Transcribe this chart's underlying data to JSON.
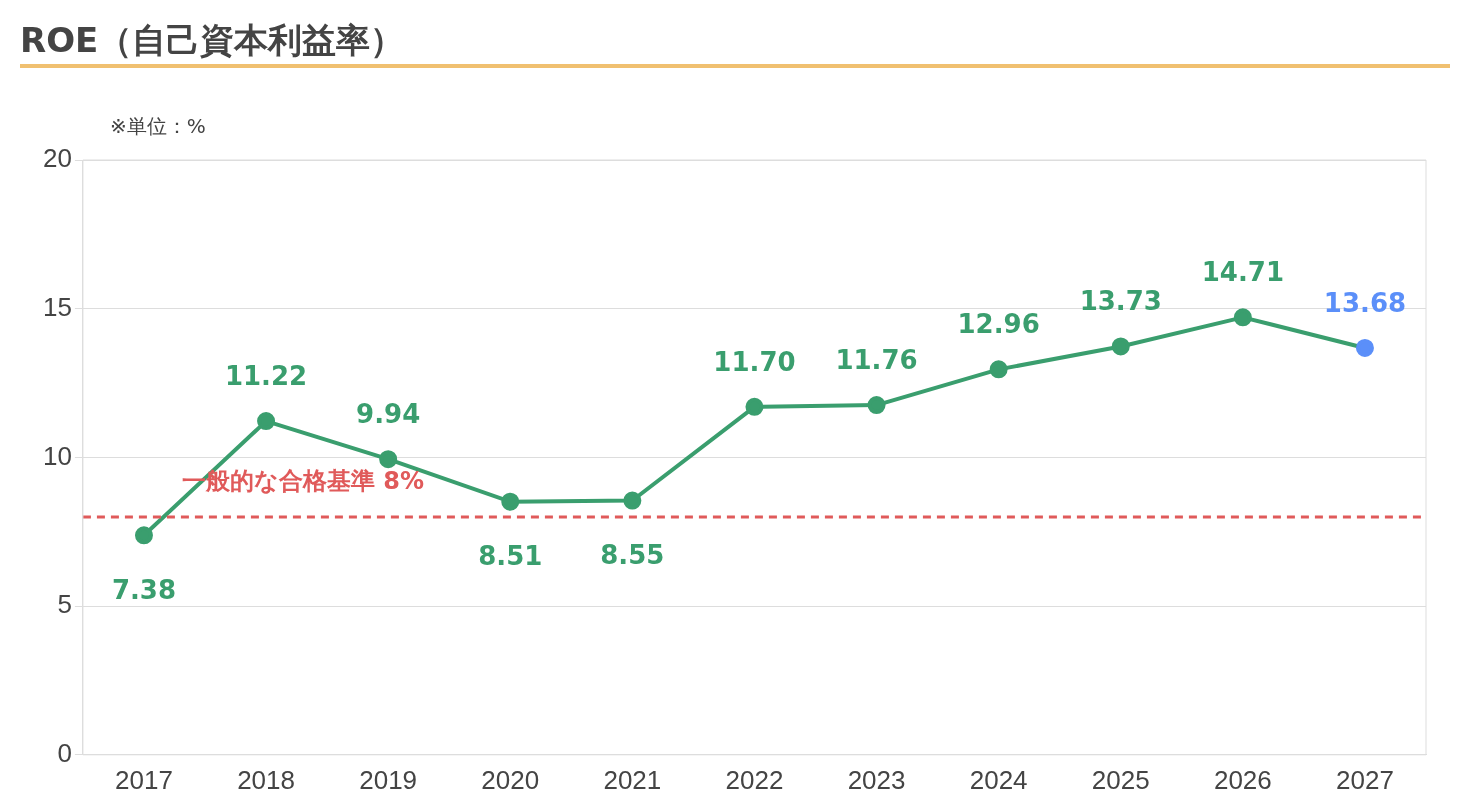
{
  "chart_data": {
    "type": "line",
    "title": "ROE（自己資本利益率）",
    "categories": [
      "2017",
      "2018",
      "2019",
      "2020",
      "2021",
      "2022",
      "2023",
      "2024",
      "2025",
      "2026",
      "2027"
    ],
    "series": [
      {
        "color": "#3a9e6e",
        "colors": [
          "#3a9e6e",
          "#3a9e6e",
          "#3a9e6e",
          "#3a9e6e",
          "#3a9e6e",
          "#3a9e6e",
          "#3a9e6e",
          "#3a9e6e",
          "#3a9e6e",
          "#3a9e6e",
          "#5b8ff9"
        ],
        "values": [
          7.38,
          11.22,
          9.94,
          8.51,
          8.55,
          11.7,
          11.76,
          12.96,
          13.73,
          14.71,
          13.68
        ],
        "value_labels": [
          "7.38",
          "11.22",
          "9.94",
          "8.51",
          "8.55",
          "11.70",
          "11.76",
          "12.96",
          "13.73",
          "14.71",
          "13.68"
        ]
      }
    ],
    "ylim": [
      0,
      20
    ],
    "yticks": [
      0,
      5,
      10,
      15,
      20
    ],
    "grid": "y",
    "legend": false,
    "marker": "circle",
    "line_style": "solid",
    "ref_lines": [
      {
        "axis": "y",
        "value": 8,
        "label": "一般的な合格基準 8%",
        "color": "#e05a5a",
        "line_style": "dashed"
      }
    ],
    "annotations": [
      "※単位：%"
    ]
  }
}
